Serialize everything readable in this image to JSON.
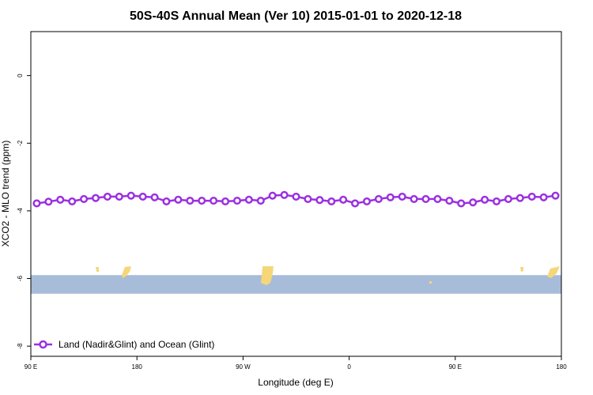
{
  "chart_data": {
    "type": "line",
    "title": "50S-40S Annual Mean (Ver 10)   2015-01-01 to 2020-12-18",
    "xlabel": "Longitude (deg E)",
    "ylabel": "XCO2 - MLO trend (ppm)",
    "xlim": [
      90,
      450
    ],
    "ylim": [
      -8.3,
      1.3
    ],
    "x_ticks": [
      {
        "value": 90,
        "label": "90 E"
      },
      {
        "value": 162,
        "label": "180"
      },
      {
        "value": 234,
        "label": "90 W"
      },
      {
        "value": 306,
        "label": "0"
      },
      {
        "value": 378,
        "label": "90 E"
      },
      {
        "value": 450,
        "label": "180"
      }
    ],
    "y_ticks": [
      {
        "value": 0,
        "label": "0"
      },
      {
        "value": -2,
        "label": "-2"
      },
      {
        "value": -4,
        "label": "-4"
      },
      {
        "value": -6,
        "label": "-6"
      },
      {
        "value": -8,
        "label": "-8"
      }
    ],
    "grid": false,
    "legend_position": "bottom-left",
    "series": [
      {
        "name": "Land (Nadir&Glint) and Ocean (Glint)",
        "color": "#9b30e0",
        "x": [
          94,
          102,
          110,
          118,
          126,
          134,
          142,
          150,
          158,
          166,
          174,
          182,
          190,
          198,
          206,
          214,
          222,
          230,
          238,
          246,
          254,
          262,
          270,
          278,
          286,
          294,
          302,
          310,
          318,
          326,
          334,
          342,
          350,
          358,
          366,
          374,
          382,
          390,
          398,
          406,
          414,
          422,
          430,
          438,
          446
        ],
        "y": [
          -3.78,
          -3.73,
          -3.67,
          -3.72,
          -3.65,
          -3.62,
          -3.58,
          -3.58,
          -3.55,
          -3.58,
          -3.6,
          -3.72,
          -3.67,
          -3.7,
          -3.7,
          -3.7,
          -3.72,
          -3.7,
          -3.67,
          -3.7,
          -3.55,
          -3.53,
          -3.58,
          -3.65,
          -3.68,
          -3.72,
          -3.67,
          -3.78,
          -3.72,
          -3.65,
          -3.6,
          -3.58,
          -3.65,
          -3.65,
          -3.65,
          -3.7,
          -3.78,
          -3.75,
          -3.67,
          -3.72,
          -3.65,
          -3.62,
          -3.58,
          -3.6,
          -3.55
        ]
      }
    ],
    "map_strip": {
      "y_range": [
        -6.45,
        -5.9
      ],
      "ocean_color": "#a7bcd9",
      "land_color": "#f5d77a"
    }
  }
}
